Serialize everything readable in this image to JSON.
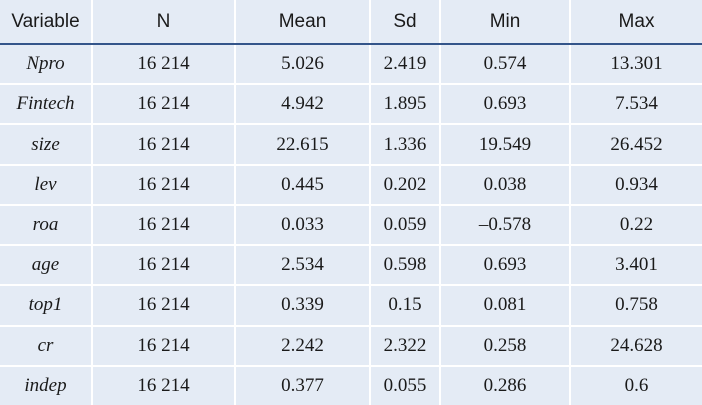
{
  "table": {
    "header": [
      "Variable",
      "N",
      "Mean",
      "Sd",
      "Min",
      "Max"
    ],
    "rows": [
      [
        "Npro",
        "16 214",
        "5.026",
        "2.419",
        "0.574",
        "13.301"
      ],
      [
        "Fintech",
        "16 214",
        "4.942",
        "1.895",
        "0.693",
        "7.534"
      ],
      [
        "size",
        "16 214",
        "22.615",
        "1.336",
        "19.549",
        "26.452"
      ],
      [
        "lev",
        "16 214",
        "0.445",
        "0.202",
        "0.038",
        "0.934"
      ],
      [
        "roa",
        "16 214",
        "0.033",
        "0.059",
        "–0.578",
        "0.22"
      ],
      [
        "age",
        "16 214",
        "2.534",
        "0.598",
        "0.693",
        "3.401"
      ],
      [
        "top1",
        "16 214",
        "0.339",
        "0.15",
        "0.081",
        "0.758"
      ],
      [
        "cr",
        "16 214",
        "2.242",
        "2.322",
        "0.258",
        "24.628"
      ],
      [
        "indep",
        "16 214",
        "0.377",
        "0.055",
        "0.286",
        "0.6"
      ]
    ]
  }
}
